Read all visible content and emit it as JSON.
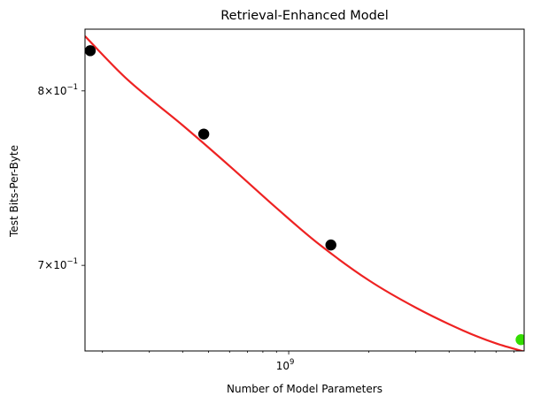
{
  "chart_data": {
    "type": "scatter",
    "title": "Retrieval-Enhanced Model",
    "xlabel": "Number of Model Parameters",
    "ylabel": "Test Bits-Per-Byte",
    "x_scale": "log",
    "y_scale": "log",
    "xlim": [
      172000000,
      7650000000
    ],
    "ylim": [
      0.6556,
      0.8387
    ],
    "grid": false,
    "x_major_ticks": [
      {
        "value": 1000000000,
        "base": "10",
        "exp": "9"
      }
    ],
    "x_minor_ticks": [
      200000000,
      300000000,
      400000000,
      500000000,
      600000000,
      700000000,
      800000000,
      900000000,
      2000000000,
      3000000000,
      4000000000,
      5000000000,
      6000000000,
      7000000000
    ],
    "y_major_ticks": [
      {
        "value": 0.8,
        "mant": "8",
        "base": "10",
        "exp": "−1"
      },
      {
        "value": 0.7,
        "mant": "7",
        "base": "10",
        "exp": "−1"
      }
    ],
    "series": [
      {
        "values": [
          {
            "x": 180000000,
            "y": 0.825
          },
          {
            "x": 480000000,
            "y": 0.774
          },
          {
            "x": 1440000000,
            "y": 0.711
          }
        ],
        "color": "#000000"
      },
      {
        "values": [
          {
            "x": 7450000000,
            "y": 0.6613
          }
        ],
        "color": "#33dd00"
      }
    ],
    "fit_line": {
      "color": "#ee2222",
      "x": [
        172000000,
        250000000,
        400000000,
        600000000,
        900000000,
        1300000000,
        2000000000,
        3000000000,
        4500000000,
        6000000000,
        7650000000
      ],
      "y": [
        0.8342,
        0.8065,
        0.7792,
        0.7553,
        0.7314,
        0.7114,
        0.692,
        0.6777,
        0.666,
        0.6594,
        0.6553
      ]
    }
  }
}
